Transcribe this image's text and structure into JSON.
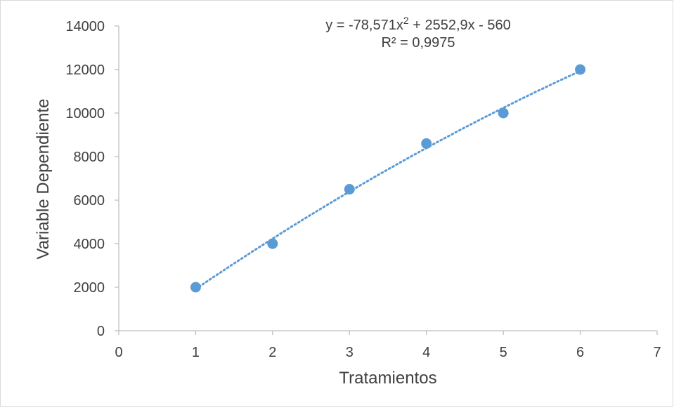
{
  "chart_data": {
    "type": "scatter",
    "title": "",
    "xlabel": "Tratamientos",
    "ylabel": "Variable Dependiente",
    "xlim": [
      0,
      7
    ],
    "ylim": [
      0,
      14000
    ],
    "xticks": [
      0,
      1,
      2,
      3,
      4,
      5,
      6,
      7
    ],
    "yticks": [
      0,
      2000,
      4000,
      6000,
      8000,
      10000,
      12000,
      14000
    ],
    "grid": false,
    "legend": false,
    "series": [
      {
        "x": [
          1,
          2,
          3,
          4,
          5,
          6
        ],
        "y": [
          2000,
          4000,
          6500,
          8600,
          10000,
          12000
        ],
        "color": "#5b9bd5"
      }
    ],
    "trendline": {
      "type": "polynomial",
      "order": 2,
      "coefficients": {
        "a": -78.571,
        "b": 2552.9,
        "c": -560
      },
      "style": "dotted",
      "color": "#5b9bd5",
      "equation_main": "y = -78,571x",
      "equation_sup": "2",
      "equation_rest": " + 2552,9x - 560",
      "r_squared": "R² = 0,9975"
    }
  }
}
